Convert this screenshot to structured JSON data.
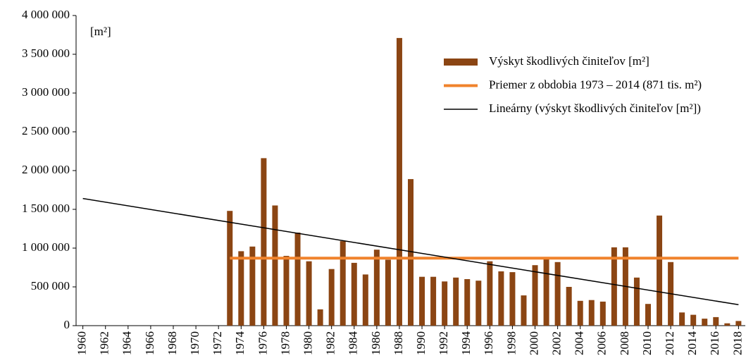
{
  "chart_data": {
    "type": "bar",
    "unit_label": "[m²]",
    "x": [
      1960,
      1961,
      1962,
      1963,
      1964,
      1965,
      1966,
      1967,
      1968,
      1969,
      1970,
      1971,
      1972,
      1973,
      1974,
      1975,
      1976,
      1977,
      1978,
      1979,
      1980,
      1981,
      1982,
      1983,
      1984,
      1985,
      1986,
      1987,
      1988,
      1989,
      1990,
      1991,
      1992,
      1993,
      1994,
      1995,
      1996,
      1997,
      1998,
      1999,
      2000,
      2001,
      2002,
      2003,
      2004,
      2005,
      2006,
      2007,
      2008,
      2009,
      2010,
      2011,
      2012,
      2013,
      2014,
      2015,
      2016,
      2017,
      2018
    ],
    "xlim": [
      1959.4,
      2018.6
    ],
    "xticks": [
      1960,
      1962,
      1964,
      1966,
      1968,
      1970,
      1972,
      1974,
      1976,
      1978,
      1980,
      1982,
      1984,
      1986,
      1988,
      1990,
      1992,
      1994,
      1996,
      1998,
      2000,
      2002,
      2004,
      2006,
      2008,
      2010,
      2012,
      2014,
      2016,
      2018
    ],
    "ylim": [
      0,
      4000000
    ],
    "yticks": [
      0,
      {
        "value": 500000,
        "label": "500 000"
      },
      {
        "value": 1000000,
        "label": "1 000 000"
      },
      {
        "value": 1500000,
        "label": "1 500 000"
      },
      {
        "value": 2000000,
        "label": "2 000 000"
      },
      {
        "value": 2500000,
        "label": "2 500 000"
      },
      {
        "value": 3000000,
        "label": "3 000 000"
      },
      {
        "value": 3500000,
        "label": "3 500 000"
      },
      {
        "value": 4000000,
        "label": "4 000 000"
      }
    ],
    "series": [
      {
        "name": "Výskyt škodlivých činiteľov [m²]",
        "color": "#8b4513",
        "values": [
          null,
          null,
          null,
          null,
          null,
          null,
          null,
          null,
          null,
          null,
          null,
          null,
          null,
          1480000,
          960000,
          1020000,
          2160000,
          1550000,
          900000,
          1200000,
          830000,
          210000,
          730000,
          1090000,
          810000,
          660000,
          980000,
          850000,
          3710000,
          1890000,
          630000,
          630000,
          570000,
          620000,
          600000,
          580000,
          830000,
          700000,
          690000,
          390000,
          780000,
          860000,
          820000,
          500000,
          320000,
          330000,
          310000,
          1010000,
          1010000,
          620000,
          280000,
          1420000,
          820000,
          170000,
          140000,
          90000,
          110000,
          30000,
          60000
        ]
      }
    ],
    "mean_line": {
      "name": "Priemer z obdobia 1973 – 2014 (871 tis. m²)",
      "color": "#f0832c",
      "x": [
        1973,
        2018
      ],
      "value": 871000
    },
    "trend_line": {
      "name": "Lineárny (výskyt škodlivých činiteľov [m²])",
      "color": "#000000",
      "x": [
        1960,
        2018
      ],
      "values": [
        1640000,
        270000
      ]
    }
  }
}
